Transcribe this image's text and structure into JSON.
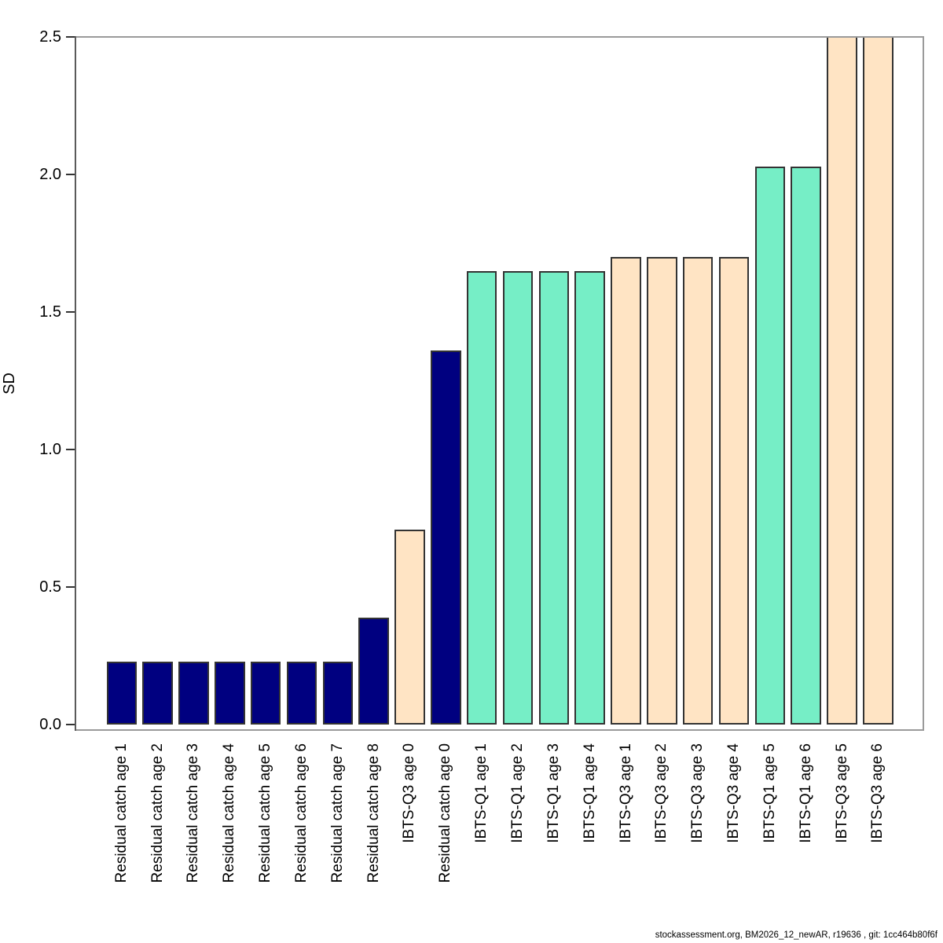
{
  "chart_data": {
    "type": "bar",
    "title": "",
    "xlabel": "",
    "ylabel": "SD",
    "ylim": [
      0,
      2.5
    ],
    "ytick_labels": [
      "0.0",
      "0.5",
      "1.0",
      "1.5",
      "2.0",
      "2.5"
    ],
    "grid": false,
    "legend_position": "none",
    "categories": [
      "Residual catch age 1",
      "Residual catch age 2",
      "Residual catch age 3",
      "Residual catch age 4",
      "Residual catch age 5",
      "Residual catch age 6",
      "Residual catch age 7",
      "Residual catch age 8",
      "IBTS-Q3 age 0",
      "Residual catch age 0",
      "IBTS-Q1 age 1",
      "IBTS-Q1 age 2",
      "IBTS-Q1 age 3",
      "IBTS-Q1 age 4",
      "IBTS-Q3 age 1",
      "IBTS-Q3 age 2",
      "IBTS-Q3 age 3",
      "IBTS-Q3 age 4",
      "IBTS-Q1 age 5",
      "IBTS-Q1 age 6",
      "IBTS-Q3 age 5",
      "IBTS-Q3 age 6"
    ],
    "bars": [
      {
        "label": "Residual catch age 1",
        "value": 0.23,
        "fleet": "residual-catch",
        "clipped": false
      },
      {
        "label": "Residual catch age 2",
        "value": 0.23,
        "fleet": "residual-catch",
        "clipped": false
      },
      {
        "label": "Residual catch age 3",
        "value": 0.23,
        "fleet": "residual-catch",
        "clipped": false
      },
      {
        "label": "Residual catch age 4",
        "value": 0.23,
        "fleet": "residual-catch",
        "clipped": false
      },
      {
        "label": "Residual catch age 5",
        "value": 0.23,
        "fleet": "residual-catch",
        "clipped": false
      },
      {
        "label": "Residual catch age 6",
        "value": 0.23,
        "fleet": "residual-catch",
        "clipped": false
      },
      {
        "label": "Residual catch age 7",
        "value": 0.23,
        "fleet": "residual-catch",
        "clipped": false
      },
      {
        "label": "Residual catch age 8",
        "value": 0.39,
        "fleet": "residual-catch",
        "clipped": false
      },
      {
        "label": "IBTS-Q3 age 0",
        "value": 0.71,
        "fleet": "ibts-q3",
        "clipped": false
      },
      {
        "label": "Residual catch age 0",
        "value": 1.36,
        "fleet": "residual-catch",
        "clipped": false
      },
      {
        "label": "IBTS-Q1 age 1",
        "value": 1.65,
        "fleet": "ibts-q1",
        "clipped": false
      },
      {
        "label": "IBTS-Q1 age 2",
        "value": 1.65,
        "fleet": "ibts-q1",
        "clipped": false
      },
      {
        "label": "IBTS-Q1 age 3",
        "value": 1.65,
        "fleet": "ibts-q1",
        "clipped": false
      },
      {
        "label": "IBTS-Q1 age 4",
        "value": 1.65,
        "fleet": "ibts-q1",
        "clipped": false
      },
      {
        "label": "IBTS-Q3 age 1",
        "value": 1.7,
        "fleet": "ibts-q3",
        "clipped": false
      },
      {
        "label": "IBTS-Q3 age 2",
        "value": 1.7,
        "fleet": "ibts-q3",
        "clipped": false
      },
      {
        "label": "IBTS-Q3 age 3",
        "value": 1.7,
        "fleet": "ibts-q3",
        "clipped": false
      },
      {
        "label": "IBTS-Q3 age 4",
        "value": 1.7,
        "fleet": "ibts-q3",
        "clipped": false
      },
      {
        "label": "IBTS-Q1 age 5",
        "value": 2.03,
        "fleet": "ibts-q1",
        "clipped": false
      },
      {
        "label": "IBTS-Q1 age 6",
        "value": 2.03,
        "fleet": "ibts-q1",
        "clipped": false
      },
      {
        "label": "IBTS-Q3 age 5",
        "value": 2.5,
        "fleet": "ibts-q3",
        "clipped": true
      },
      {
        "label": "IBTS-Q3 age 6",
        "value": 2.5,
        "fleet": "ibts-q3",
        "clipped": true
      }
    ],
    "colors": {
      "residual-catch": "#000080",
      "ibts-q1": "#76EEC6",
      "ibts-q3": "#FFE4C4"
    },
    "bar_border_color": "#333333",
    "box_color": "#9a9a9a"
  },
  "footer": {
    "text": "stockassessment.org, BM2026_12_newAR, r19636 , git: 1cc464b80f6f"
  }
}
